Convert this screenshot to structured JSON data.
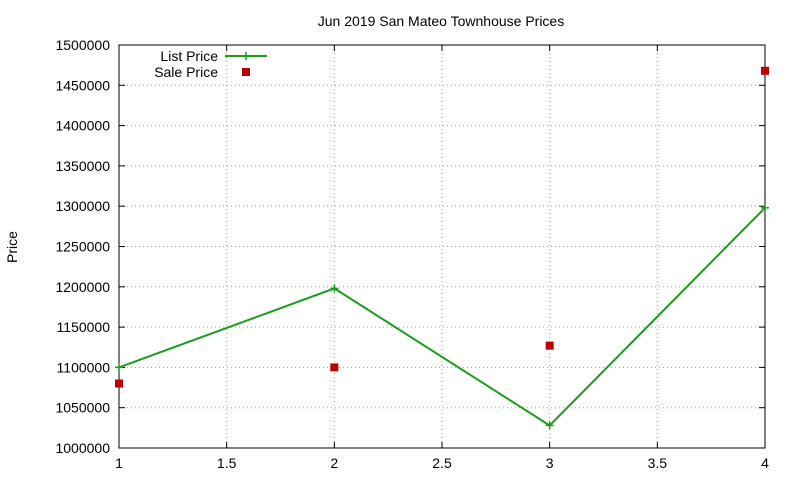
{
  "chart_data": {
    "type": "line",
    "title": "Jun 2019 San Mateo Townhouse Prices",
    "xlabel": "",
    "ylabel": "Price",
    "xlim": [
      1,
      4
    ],
    "ylim": [
      1000000,
      1500000
    ],
    "x_ticks": [
      1,
      1.5,
      2,
      2.5,
      3,
      3.5,
      4
    ],
    "x_tick_labels": [
      "1",
      "1.5",
      "2",
      "2.5",
      "3",
      "3.5",
      "4"
    ],
    "y_ticks": [
      1000000,
      1050000,
      1100000,
      1150000,
      1200000,
      1250000,
      1300000,
      1350000,
      1400000,
      1450000,
      1500000
    ],
    "y_tick_labels": [
      "1000000",
      "1050000",
      "1100000",
      "1150000",
      "1200000",
      "1250000",
      "1300000",
      "1350000",
      "1400000",
      "1450000",
      "1500000"
    ],
    "grid": true,
    "legend_position": "top-left",
    "series": [
      {
        "name": "List Price",
        "style": "linespoints",
        "color": "#1a9e1a",
        "marker": "plus",
        "x": [
          1,
          2,
          3,
          4
        ],
        "y": [
          1100000,
          1198000,
          1028000,
          1298000
        ]
      },
      {
        "name": "Sale Price",
        "style": "points",
        "color": "#c00000",
        "marker": "square",
        "x": [
          1,
          2,
          3,
          4
        ],
        "y": [
          1080000,
          1100000,
          1127000,
          1468000
        ]
      }
    ]
  }
}
